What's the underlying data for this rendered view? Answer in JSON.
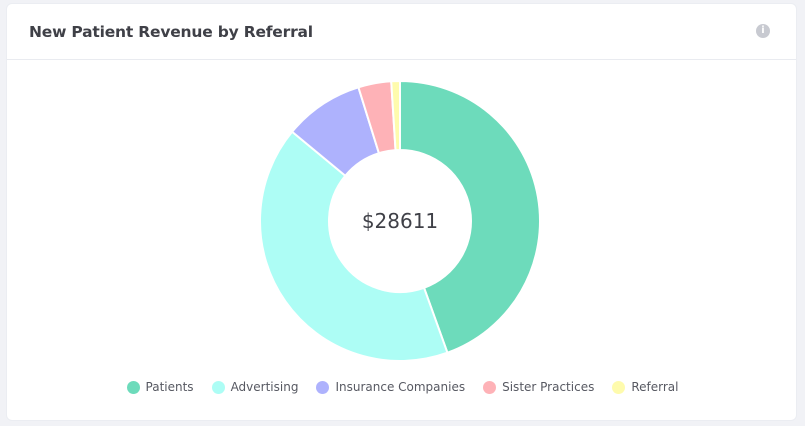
{
  "card": {
    "title": "New Patient Revenue by Referral",
    "info_icon_glyph": "i"
  },
  "chart_data": {
    "type": "pie",
    "variant": "doughnut",
    "center_label": "$28611",
    "categories": [
      "Patients",
      "Advertising",
      "Insurance Companies",
      "Sister Practices",
      "Referral"
    ],
    "values": [
      44.5,
      41.5,
      9.2,
      3.8,
      1.0
    ],
    "colors": [
      "#6ddbbb",
      "#adfdf5",
      "#aeb2fd",
      "#feb2b7",
      "#fefbad"
    ],
    "legend_position": "bottom"
  }
}
